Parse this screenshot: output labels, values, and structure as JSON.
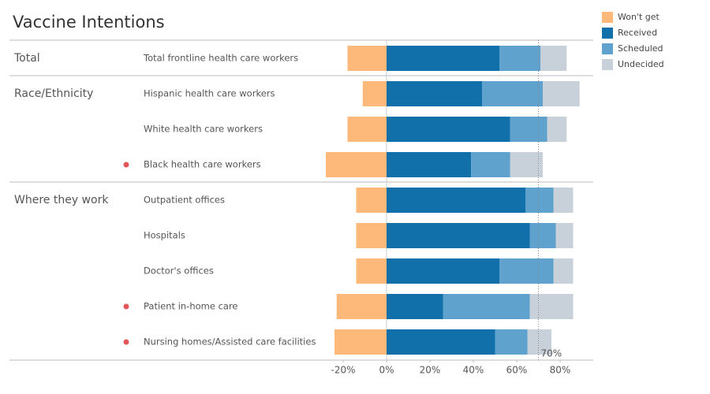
{
  "chart_data": {
    "type": "diverging-bar",
    "title": "Vaccine Intentions",
    "categories": [
      "Total frontline health care workers",
      "Hispanic health care workers",
      "White health care workers",
      "Black health care workers",
      "Outpatient offices",
      "Hospitals",
      "Doctor's offices",
      "Patient in-home care",
      "Nursing homes/Assisted care facilities"
    ],
    "category_groups": [
      "Total",
      "Race/Ethnicity",
      null,
      null,
      "Where they work",
      null,
      null,
      null,
      null
    ],
    "highlighted": [
      false,
      false,
      false,
      true,
      false,
      false,
      false,
      true,
      true
    ],
    "highlight_color": "#e15759",
    "series": [
      {
        "name": "Won't get",
        "color": "#fdb97a",
        "values": [
          -18,
          -11,
          -18,
          -28,
          -14,
          -14,
          -14,
          -23,
          -24
        ]
      },
      {
        "name": "Received",
        "color": "#1170aa",
        "values": [
          52,
          44,
          57,
          39,
          64,
          66,
          52,
          26,
          50
        ]
      },
      {
        "name": "Scheduled",
        "color": "#5fa2ce",
        "values": [
          19,
          28,
          17,
          18,
          13,
          12,
          25,
          40,
          15
        ]
      },
      {
        "name": "Undecided",
        "color": "#c8d0d9",
        "values": [
          12,
          17,
          9,
          15,
          9,
          8,
          9,
          20,
          11
        ]
      }
    ],
    "xlim": [
      -30,
      90
    ],
    "xticks": [
      {
        "value": -20,
        "label": "-20%"
      },
      {
        "value": 0,
        "label": "0%"
      },
      {
        "value": 20,
        "label": "20%"
      },
      {
        "value": 40,
        "label": "40%"
      },
      {
        "value": 60,
        "label": "60%"
      },
      {
        "value": 80,
        "label": "80%"
      }
    ],
    "reference": {
      "value": 70,
      "label": "70%"
    },
    "legend": "top-right"
  }
}
